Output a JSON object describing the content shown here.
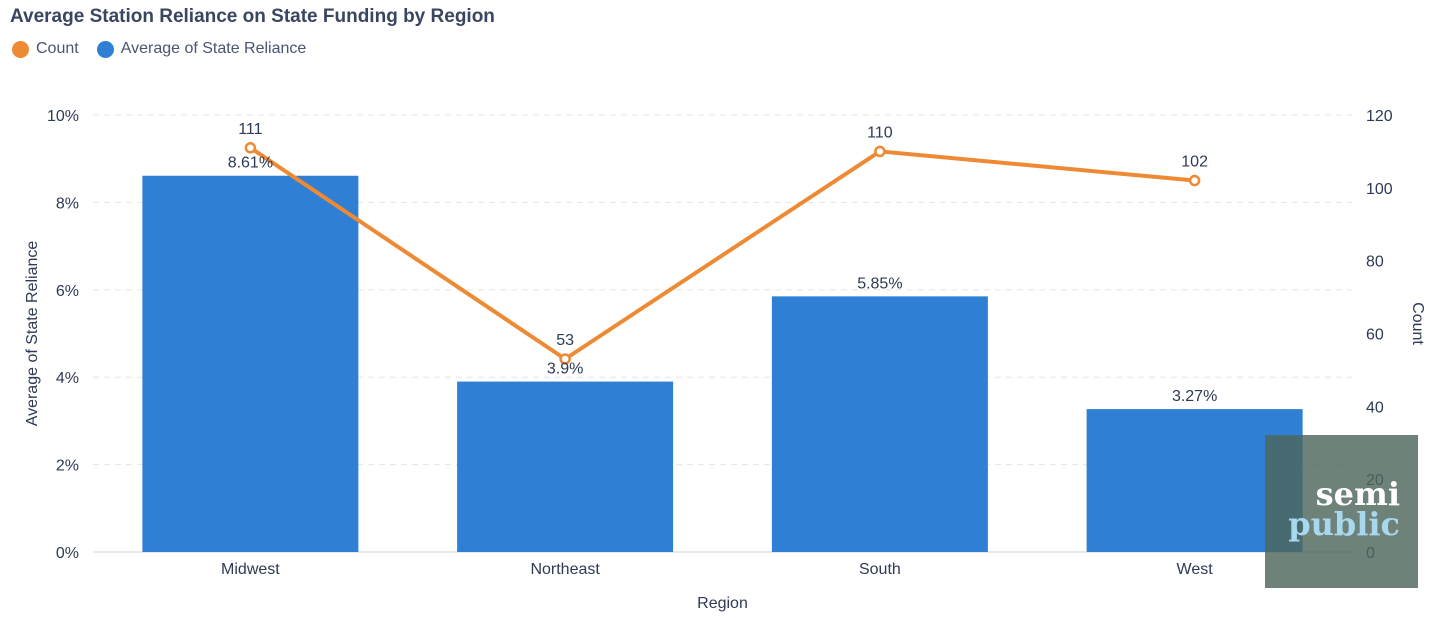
{
  "colors": {
    "bar": "#2f80d4",
    "line": "#ee8a33",
    "grid": "#e3e6ea",
    "text": "#2e3a55"
  },
  "chart_data": {
    "type": "bar",
    "title": "Average Station Reliance on State Funding by Region",
    "xlabel": "Region",
    "ylabel": "Average of State Reliance",
    "y2label": "Count",
    "categories": [
      "Midwest",
      "Northeast",
      "South",
      "West"
    ],
    "ylim": [
      0,
      10
    ],
    "y2lim": [
      0,
      120
    ],
    "yticks": [
      "0%",
      "2%",
      "4%",
      "6%",
      "8%",
      "10%"
    ],
    "y2ticks": [
      "0",
      "20",
      "40",
      "60",
      "80",
      "100",
      "120"
    ],
    "grid": true,
    "legend_position": "top-left",
    "series": [
      {
        "name": "Count",
        "type": "line",
        "axis": "right",
        "values": [
          111,
          53,
          110,
          102
        ],
        "labels": [
          "111",
          "53",
          "110",
          "102"
        ]
      },
      {
        "name": "Average of State Reliance",
        "type": "bar",
        "axis": "left",
        "values": [
          8.61,
          3.9,
          5.85,
          3.27
        ],
        "labels": [
          "8.61%",
          "3.9%",
          "5.85%",
          "3.27%"
        ]
      }
    ]
  },
  "watermark": {
    "line1": "semi",
    "line2": "public"
  }
}
